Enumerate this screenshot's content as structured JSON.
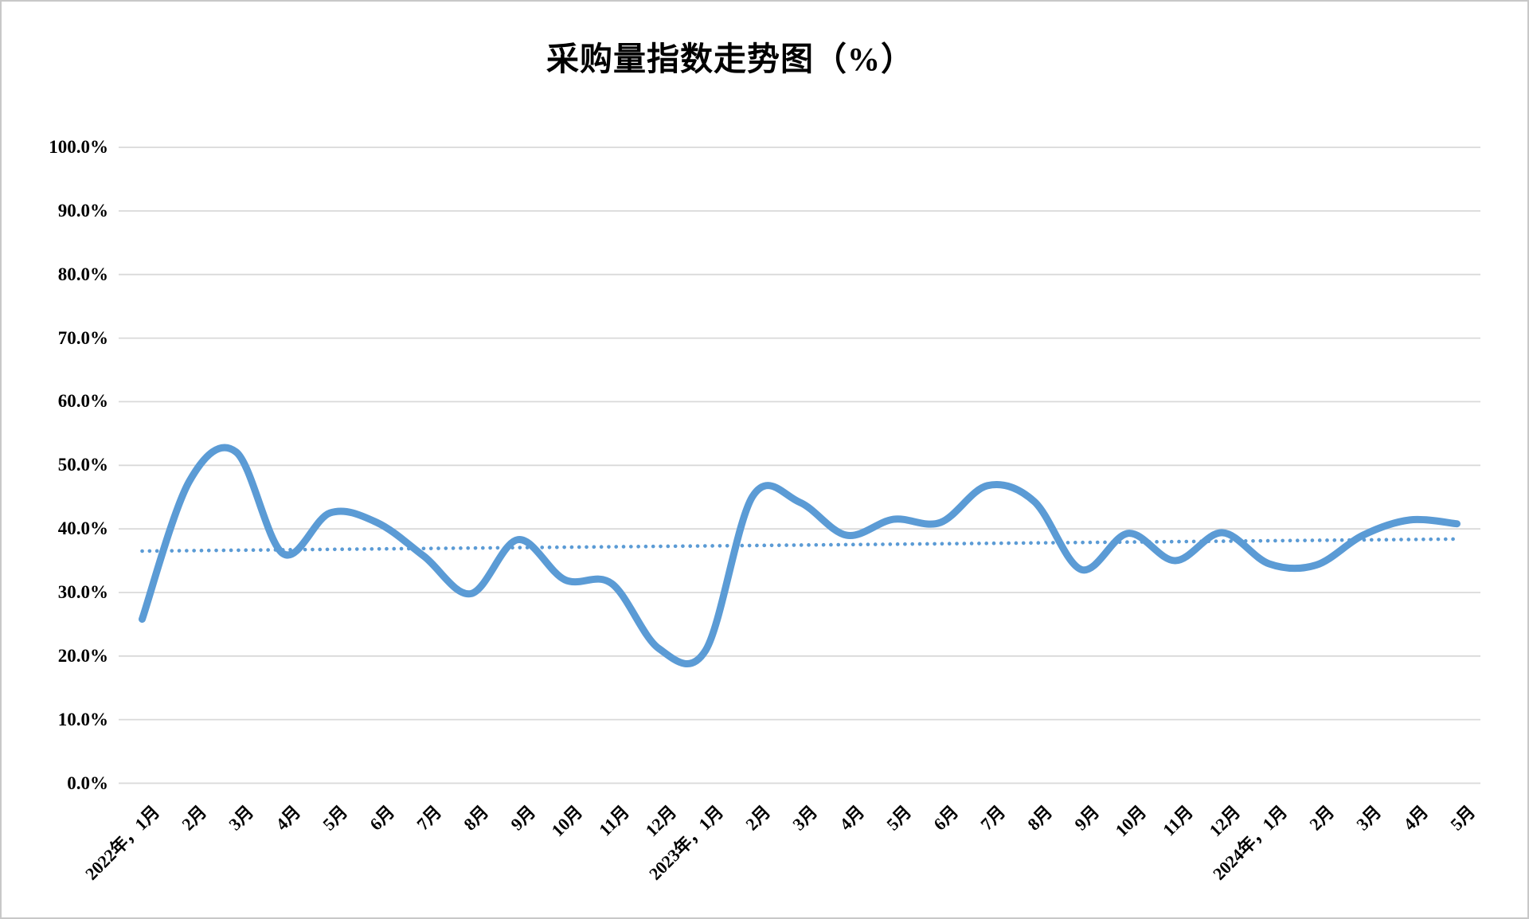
{
  "title": "采购量指数走势图（%）",
  "colors": {
    "series": "#5B9BD5",
    "trendline": "#5B9BD5",
    "gridline": "#D9D9D9",
    "text": "#000000",
    "background": "#FFFFFF",
    "frame_border": "#C8C8C8"
  },
  "chart_data": {
    "type": "line",
    "title": "采购量指数走势图（%）",
    "categories": [
      "2022年，1月",
      "2月",
      "3月",
      "4月",
      "5月",
      "6月",
      "7月",
      "8月",
      "9月",
      "10月",
      "11月",
      "12月",
      "2023年，1月",
      "2月",
      "3月",
      "4月",
      "5月",
      "6月",
      "7月",
      "8月",
      "9月",
      "10月",
      "11月",
      "12月",
      "2024年，1月",
      "2月",
      "3月",
      "4月",
      "5月"
    ],
    "series": [
      {
        "name": "",
        "smooth": true,
        "color": "#5B9BD5",
        "values": [
          25.8,
          47.4,
          52.1,
          36.1,
          42.5,
          41.0,
          35.7,
          29.8,
          38.3,
          32.0,
          31.4,
          21.2,
          20.9,
          45.1,
          44.2,
          39.0,
          41.5,
          41.0,
          46.8,
          44.3,
          33.6,
          39.3,
          35.0,
          39.4,
          34.5,
          34.3,
          39.0,
          41.4,
          40.8
        ]
      }
    ],
    "trendline": {
      "type": "linear",
      "style": "dotted",
      "color": "#5B9BD5",
      "start_value": 36.5,
      "end_value": 38.4
    },
    "y_tick_labels": [
      "100.0%",
      "90.0%",
      "80.0%",
      "70.0%",
      "60.0%",
      "50.0%",
      "40.0%",
      "30.0%",
      "20.0%",
      "10.0%",
      "0.0%"
    ],
    "y_tick_values": [
      100,
      90,
      80,
      70,
      60,
      50,
      40,
      30,
      20,
      10,
      0
    ],
    "ylim": [
      0,
      100
    ],
    "xlabel": "",
    "ylabel": "",
    "grid": "horizontal",
    "legend": "none"
  }
}
